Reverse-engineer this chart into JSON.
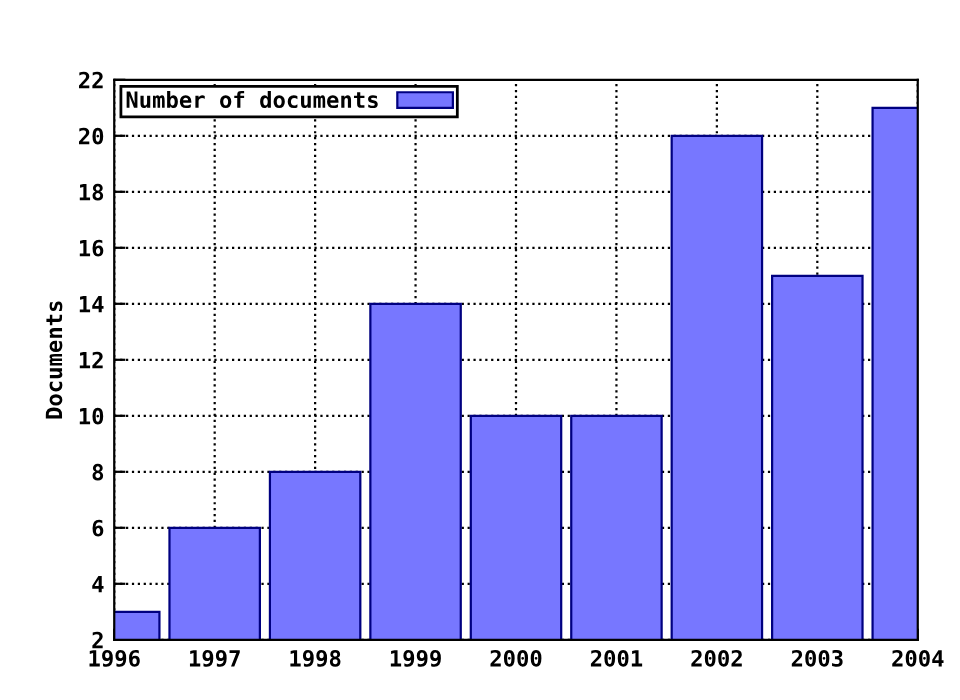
{
  "chart_data": {
    "type": "bar",
    "ylabel": "Documents",
    "x": [
      1996,
      1997,
      1998,
      1999,
      2000,
      2001,
      2002,
      2003,
      2004
    ],
    "series": [
      {
        "name": "Number of documents",
        "color": "#7777ff",
        "values": [
          3,
          6,
          8,
          14,
          10,
          10,
          20,
          15,
          21
        ]
      }
    ],
    "xlim": [
      1996,
      2004
    ],
    "xticks": [
      1996,
      1997,
      1998,
      1999,
      2000,
      2001,
      2002,
      2003,
      2004
    ],
    "ylim": [
      2,
      22
    ],
    "yticks": [
      2,
      4,
      6,
      8,
      10,
      12,
      14,
      16,
      18,
      20,
      22
    ],
    "grid": true,
    "legend": "top left"
  }
}
